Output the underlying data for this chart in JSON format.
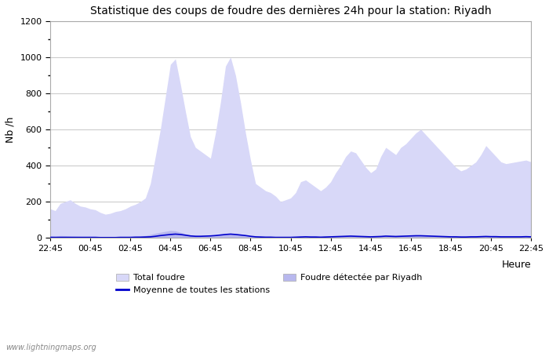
{
  "title": "Statistique des coups de foudre des dernières 24h pour la station: Riyadh",
  "ylabel": "Nb /h",
  "xlabel": "Heure",
  "watermark": "www.lightningmaps.org",
  "ylim": [
    0,
    1200
  ],
  "yticks": [
    0,
    200,
    400,
    600,
    800,
    1000,
    1200
  ],
  "xtick_labels": [
    "22:45",
    "00:45",
    "02:45",
    "04:45",
    "06:45",
    "08:45",
    "10:45",
    "12:45",
    "14:45",
    "16:45",
    "18:45",
    "20:45",
    "22:45"
  ],
  "legend_total": "Total foudre",
  "legend_moyenne": "Moyenne de toutes les stations",
  "legend_riyadh": "Foudre détectée par Riyadh",
  "bg_color": "#ffffff",
  "plot_bg_color": "#ffffff",
  "fill_total_color": "#d8d8f8",
  "fill_riyadh_color": "#b8b8ee",
  "mean_line_color": "#0000cc",
  "grid_color": "#cccccc",
  "total_foudre": [
    160,
    150,
    190,
    200,
    210,
    190,
    175,
    170,
    160,
    155,
    140,
    130,
    135,
    145,
    150,
    160,
    175,
    185,
    200,
    220,
    300,
    450,
    600,
    780,
    960,
    990,
    850,
    700,
    560,
    500,
    480,
    460,
    440,
    580,
    750,
    950,
    1000,
    900,
    750,
    580,
    430,
    300,
    280,
    260,
    250,
    230,
    200,
    210,
    220,
    250,
    310,
    320,
    300,
    280,
    260,
    280,
    310,
    360,
    400,
    450,
    480,
    470,
    430,
    390,
    360,
    380,
    450,
    500,
    480,
    460,
    500,
    520,
    550,
    580,
    600,
    570,
    540,
    510,
    480,
    450,
    420,
    390,
    370,
    380,
    400,
    420,
    460,
    510,
    480,
    450,
    420,
    410,
    415,
    420,
    425,
    430,
    420
  ],
  "foudre_riyadh": [
    10,
    8,
    12,
    11,
    9,
    8,
    7,
    6,
    5,
    4,
    4,
    3,
    3,
    4,
    5,
    6,
    7,
    8,
    10,
    12,
    18,
    25,
    30,
    35,
    40,
    38,
    30,
    22,
    15,
    12,
    10,
    9,
    8,
    10,
    15,
    20,
    25,
    20,
    15,
    10,
    7,
    5,
    4,
    3,
    3,
    2,
    2,
    2,
    3,
    4,
    5,
    6,
    5,
    5,
    4,
    5,
    6,
    7,
    8,
    9,
    10,
    9,
    8,
    7,
    6,
    7,
    8,
    10,
    9,
    8,
    9,
    10,
    11,
    12,
    12,
    11,
    10,
    9,
    8,
    7,
    6,
    6,
    5,
    5,
    6,
    6,
    7,
    8,
    7,
    7,
    6,
    5,
    5,
    5,
    5,
    6,
    5
  ],
  "moyenne": [
    2,
    2,
    2,
    2,
    2,
    2,
    2,
    2,
    2,
    2,
    1,
    1,
    1,
    1,
    2,
    2,
    2,
    3,
    3,
    4,
    5,
    8,
    12,
    15,
    18,
    20,
    18,
    14,
    10,
    8,
    8,
    9,
    10,
    12,
    15,
    18,
    20,
    18,
    15,
    12,
    8,
    5,
    4,
    3,
    3,
    2,
    2,
    2,
    2,
    3,
    4,
    5,
    4,
    4,
    3,
    4,
    5,
    6,
    7,
    8,
    9,
    8,
    7,
    6,
    5,
    6,
    7,
    9,
    8,
    7,
    8,
    9,
    10,
    11,
    11,
    10,
    9,
    8,
    7,
    6,
    5,
    5,
    4,
    4,
    5,
    5,
    6,
    7,
    6,
    6,
    5,
    5,
    5,
    5,
    5,
    6,
    5
  ]
}
